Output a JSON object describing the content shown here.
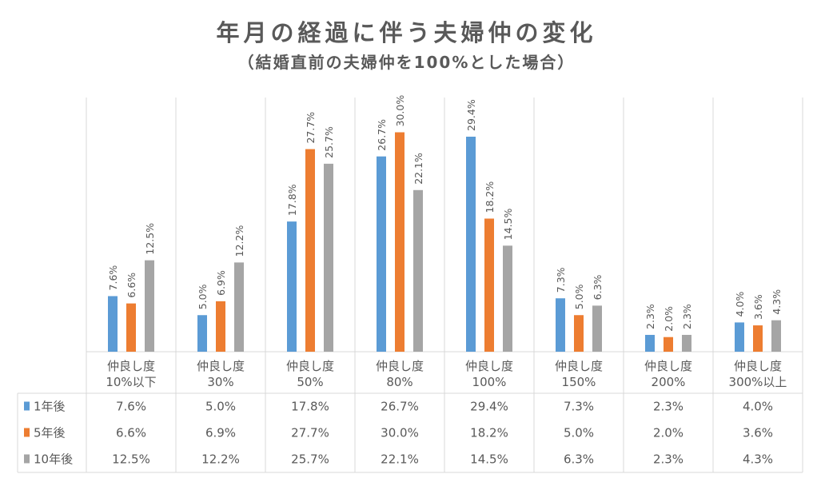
{
  "title": "年月の経過に伴う夫婦仲の変化",
  "subtitle": "（結婚直前の夫婦仲を100%とした場合）",
  "chart_data": {
    "type": "bar",
    "categories": [
      [
        "仲良し度",
        "10%以下"
      ],
      [
        "仲良し度",
        "30%"
      ],
      [
        "仲良し度",
        "50%"
      ],
      [
        "仲良し度",
        "80%"
      ],
      [
        "仲良し度",
        "100%"
      ],
      [
        "仲良し度",
        "150%"
      ],
      [
        "仲良し度",
        "200%"
      ],
      [
        "仲良し度",
        "300%以上"
      ]
    ],
    "series": [
      {
        "name": "1年後",
        "color": "#5B9BD5",
        "values": [
          7.6,
          5.0,
          17.8,
          26.7,
          29.4,
          7.3,
          2.3,
          4.0
        ]
      },
      {
        "name": "5年後",
        "color": "#ED7D31",
        "values": [
          6.6,
          6.9,
          27.7,
          30.0,
          18.2,
          5.0,
          2.0,
          3.6
        ]
      },
      {
        "name": "10年後",
        "color": "#A5A5A5",
        "values": [
          12.5,
          12.2,
          25.7,
          22.1,
          14.5,
          6.3,
          2.3,
          4.3
        ]
      }
    ],
    "value_suffix": "%",
    "ylim": [
      0,
      30
    ],
    "legend": "data-table",
    "grid": false
  }
}
